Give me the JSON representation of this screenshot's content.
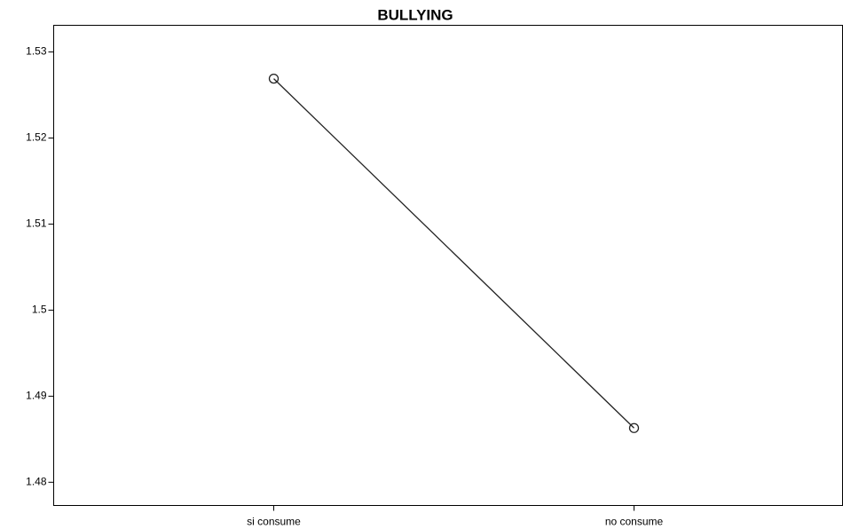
{
  "chart_data": {
    "type": "line",
    "title": "BULLYING",
    "categories": [
      "si consume",
      "no consume"
    ],
    "values": [
      1.5269,
      1.4863
    ],
    "color": "#222222",
    "ylim": [
      1.4773,
      1.5331
    ],
    "yticks": [
      1.48,
      1.49,
      1.5,
      1.51,
      1.52,
      1.53
    ],
    "grid": false
  }
}
